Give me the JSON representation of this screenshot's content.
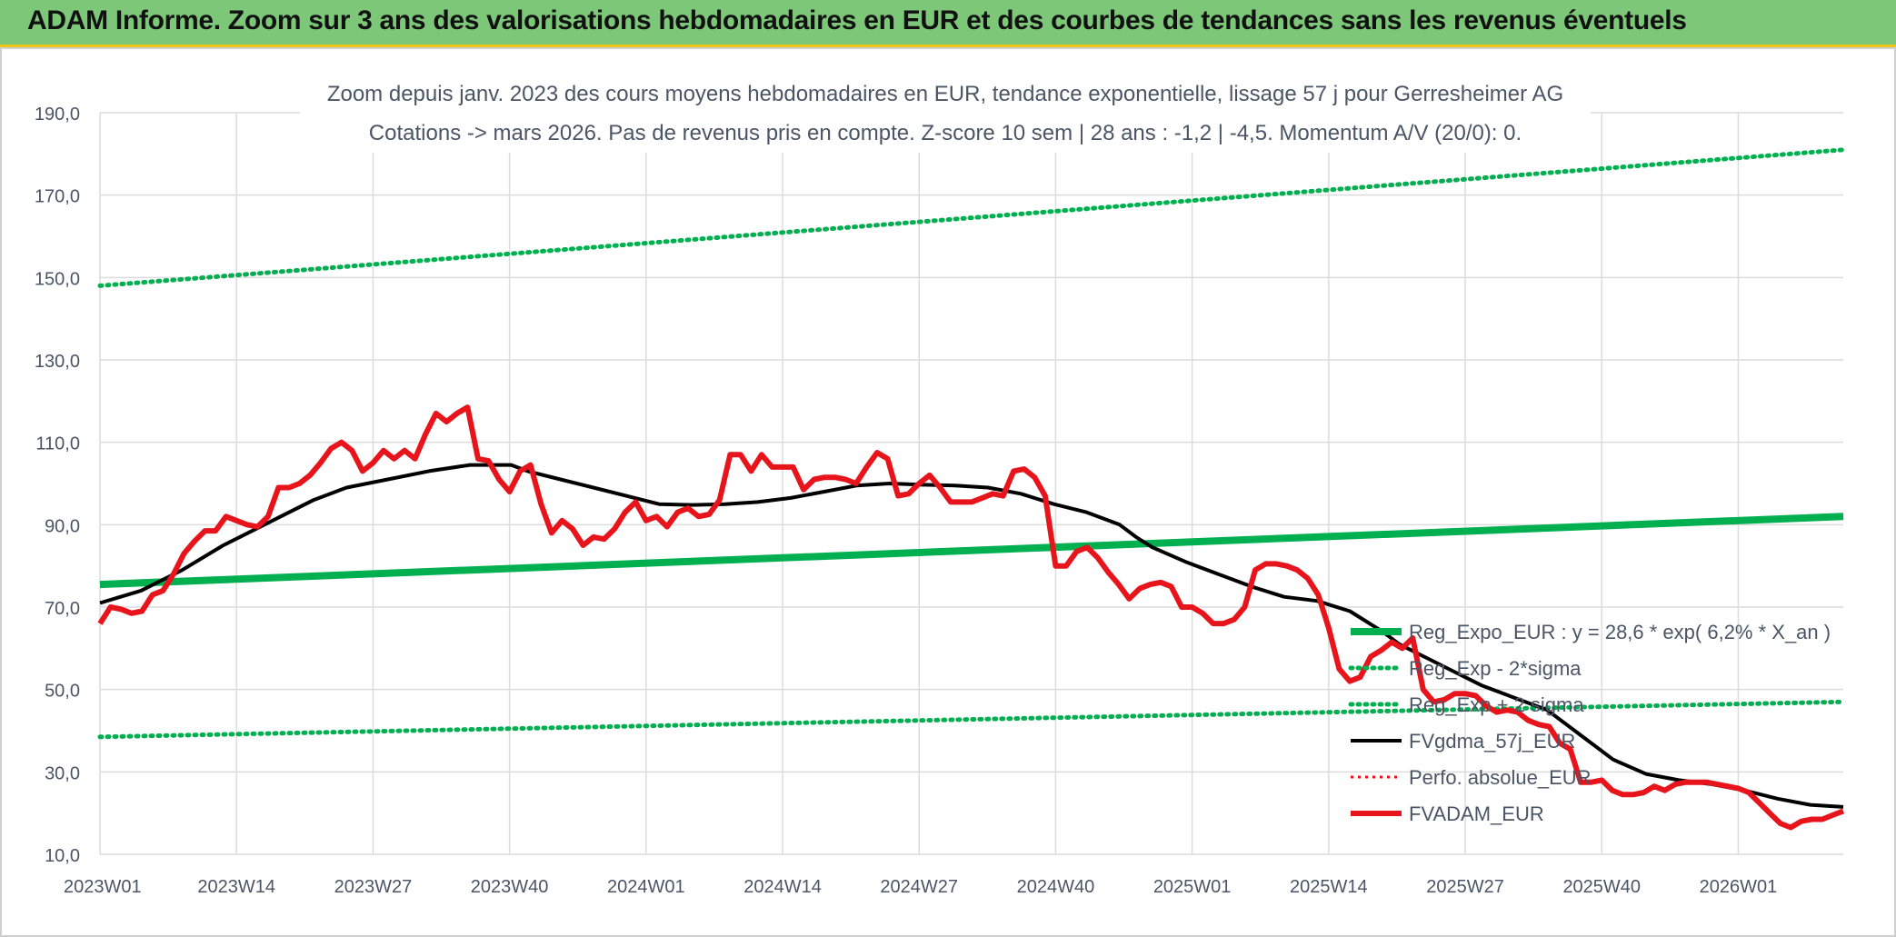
{
  "page": {
    "banner_title": "ADAM Informe. Zoom sur 3 ans des valorisations hebdomadaires en EUR et des courbes de tendances sans les revenus éventuels"
  },
  "colors": {
    "banner_bg": "#7dc878",
    "banner_border": "#f0c419",
    "reg_expo": "#00b050",
    "fvadam": "#e8141b",
    "fvgdma": "#000000",
    "perfo": "#e8141b"
  },
  "chart_data": {
    "type": "line",
    "title": "Zoom depuis janv. 2023 des cours moyens hebdomadaires en EUR, tendance exponentielle, lissage 57 j pour Gerresheimer AG",
    "subtitle": "Cotations -> mars 2026. Pas de revenus pris en compte. Z-score 10 sem | 28 ans : -1,2 | -4,5. Momentum A/V (20/0): 0.",
    "xlabel": "",
    "ylabel": "",
    "ylim": [
      10,
      190
    ],
    "y_ticks": [
      "10,0",
      "30,0",
      "50,0",
      "70,0",
      "90,0",
      "110,0",
      "130,0",
      "150,0",
      "170,0",
      "190,0"
    ],
    "x_ticks": [
      "2023W01",
      "2023W14",
      "2023W27",
      "2023W40",
      "2024W01",
      "2024W14",
      "2024W27",
      "2024W40",
      "2025W01",
      "2025W14",
      "2025W27",
      "2025W40",
      "2026W01"
    ],
    "grid": true,
    "legend_position": "bottom-right",
    "n_weeks": 167,
    "legend": [
      "Reg_Expo_EUR : y = 28,6 * exp( 6,2% *  X_an )",
      "Reg_Exp - 2*sigma",
      "Reg_Exp + 2 sigma",
      "FVgdma_57j_EUR",
      "Perfo. absolue_EUR",
      "FVADAM_EUR"
    ],
    "series": [
      {
        "name": "Reg_Expo_EUR : y = 28,6 * exp( 6,2% *  X_an )",
        "style": "thick",
        "points": [
          [
            0,
            75.5
          ],
          [
            166,
            92.0
          ]
        ]
      },
      {
        "name": "Reg_Exp - 2*sigma",
        "style": "dotted",
        "points": [
          [
            0,
            38.5
          ],
          [
            166,
            47.0
          ]
        ]
      },
      {
        "name": "Reg_Exp + 2 sigma",
        "style": "dotted",
        "points": [
          [
            0,
            148.0
          ],
          [
            166,
            181.0
          ]
        ]
      },
      {
        "name": "FVgdma_57j_EUR",
        "style": "solid",
        "points": [
          [
            0,
            71
          ],
          [
            5,
            74
          ],
          [
            10,
            79
          ],
          [
            15,
            85
          ],
          [
            20,
            90
          ],
          [
            26,
            96
          ],
          [
            30,
            99
          ],
          [
            35,
            101
          ],
          [
            40,
            103
          ],
          [
            45,
            104.5
          ],
          [
            50,
            104.5
          ],
          [
            52,
            103
          ],
          [
            56,
            101
          ],
          [
            60,
            99
          ],
          [
            64,
            97
          ],
          [
            68,
            95
          ],
          [
            72,
            94.8
          ],
          [
            76,
            95
          ],
          [
            80,
            95.5
          ],
          [
            84,
            96.5
          ],
          [
            88,
            98
          ],
          [
            92,
            99.5
          ],
          [
            96,
            100
          ],
          [
            100,
            99.7
          ],
          [
            104,
            99.5
          ],
          [
            108,
            99
          ],
          [
            112,
            97.5
          ],
          [
            116,
            95
          ],
          [
            120,
            93
          ],
          [
            124,
            90
          ],
          [
            126,
            87
          ],
          [
            128,
            84.5
          ],
          [
            132,
            81
          ],
          [
            136,
            78
          ],
          [
            140,
            75
          ],
          [
            144,
            72.5
          ],
          [
            148,
            71.5
          ],
          [
            152,
            69
          ],
          [
            156,
            64
          ],
          [
            158,
            61
          ],
          [
            160,
            59
          ],
          [
            164,
            55
          ],
          [
            168,
            51
          ],
          [
            172,
            48
          ],
          [
            176,
            45
          ],
          [
            180,
            39
          ],
          [
            184,
            33
          ],
          [
            188,
            29.5
          ],
          [
            192,
            28
          ],
          [
            196,
            27
          ],
          [
            200,
            25.5
          ],
          [
            204,
            23.5
          ],
          [
            208,
            22
          ],
          [
            212,
            21.5
          ]
        ]
      },
      {
        "name": "FVADAM_EUR",
        "style": "thick",
        "points": [
          [
            0,
            66
          ],
          [
            1,
            70
          ],
          [
            2,
            69.5
          ],
          [
            3,
            68.5
          ],
          [
            4,
            69
          ],
          [
            5,
            73
          ],
          [
            6,
            74
          ],
          [
            7,
            78
          ],
          [
            8,
            83
          ],
          [
            9,
            86
          ],
          [
            10,
            88.5
          ],
          [
            11,
            88.5
          ],
          [
            12,
            92
          ],
          [
            13,
            91
          ],
          [
            14,
            90
          ],
          [
            15,
            89.5
          ],
          [
            16,
            92
          ],
          [
            17,
            99
          ],
          [
            18,
            99
          ],
          [
            19,
            100
          ],
          [
            20,
            102
          ],
          [
            21,
            105
          ],
          [
            22,
            108.5
          ],
          [
            23,
            110
          ],
          [
            24,
            108
          ],
          [
            25,
            103
          ],
          [
            26,
            105
          ],
          [
            27,
            108
          ],
          [
            28,
            106
          ],
          [
            29,
            108
          ],
          [
            30,
            106
          ],
          [
            31,
            112
          ],
          [
            32,
            117
          ],
          [
            33,
            115
          ],
          [
            34,
            117
          ],
          [
            35,
            118.5
          ],
          [
            36,
            106
          ],
          [
            37,
            105.5
          ],
          [
            38,
            101
          ],
          [
            39,
            98
          ],
          [
            40,
            103
          ],
          [
            41,
            104.5
          ],
          [
            42,
            95
          ],
          [
            43,
            88
          ],
          [
            44,
            91
          ],
          [
            45,
            89
          ],
          [
            46,
            85
          ],
          [
            47,
            87
          ],
          [
            48,
            86.5
          ],
          [
            49,
            89
          ],
          [
            50,
            93
          ],
          [
            51,
            95.5
          ],
          [
            52,
            91
          ],
          [
            53,
            92
          ],
          [
            54,
            89.5
          ],
          [
            55,
            93
          ],
          [
            56,
            94
          ],
          [
            57,
            92
          ],
          [
            58,
            92.5
          ],
          [
            59,
            96
          ],
          [
            60,
            107
          ],
          [
            61,
            107
          ],
          [
            62,
            103
          ],
          [
            63,
            107
          ],
          [
            64,
            104
          ],
          [
            65,
            104
          ],
          [
            66,
            104
          ],
          [
            67,
            98.5
          ],
          [
            68,
            101
          ],
          [
            69,
            101.5
          ],
          [
            70,
            101.5
          ],
          [
            71,
            101
          ],
          [
            72,
            100
          ],
          [
            73,
            104
          ],
          [
            74,
            107.5
          ],
          [
            75,
            106
          ],
          [
            76,
            97
          ],
          [
            77,
            97.5
          ],
          [
            78,
            100
          ],
          [
            79,
            102
          ],
          [
            80,
            99
          ],
          [
            81,
            95.5
          ],
          [
            82,
            95.5
          ],
          [
            83,
            95.5
          ],
          [
            84,
            96.5
          ],
          [
            85,
            97.5
          ],
          [
            86,
            97
          ],
          [
            87,
            103
          ],
          [
            88,
            103.5
          ],
          [
            89,
            101.5
          ],
          [
            90,
            97
          ],
          [
            91,
            80
          ],
          [
            92,
            80
          ],
          [
            93,
            83.5
          ],
          [
            94,
            84.5
          ],
          [
            95,
            82
          ],
          [
            96,
            78.5
          ],
          [
            97,
            75.5
          ],
          [
            98,
            72
          ],
          [
            99,
            74.5
          ],
          [
            100,
            75.5
          ],
          [
            101,
            76
          ],
          [
            102,
            75
          ],
          [
            103,
            70
          ],
          [
            104,
            70
          ],
          [
            105,
            68.5
          ],
          [
            106,
            66
          ],
          [
            107,
            66
          ],
          [
            108,
            67
          ],
          [
            109,
            70
          ],
          [
            110,
            79
          ],
          [
            111,
            80.5
          ],
          [
            112,
            80.5
          ],
          [
            113,
            80
          ],
          [
            114,
            79
          ],
          [
            115,
            77
          ],
          [
            116,
            73
          ],
          [
            117,
            65
          ],
          [
            118,
            55
          ],
          [
            119,
            52
          ],
          [
            120,
            53
          ],
          [
            121,
            58
          ],
          [
            122,
            59.5
          ],
          [
            123,
            61.5
          ],
          [
            124,
            60
          ],
          [
            125,
            62.5
          ],
          [
            126,
            50
          ],
          [
            127,
            47
          ],
          [
            128,
            47.5
          ],
          [
            129,
            49
          ],
          [
            130,
            49
          ],
          [
            131,
            48.5
          ],
          [
            132,
            46
          ],
          [
            133,
            44.5
          ],
          [
            134,
            45
          ],
          [
            135,
            44.5
          ],
          [
            136,
            42.5
          ],
          [
            137,
            41.5
          ],
          [
            138,
            41
          ],
          [
            139,
            37
          ],
          [
            140,
            35.5
          ],
          [
            141,
            27.5
          ],
          [
            142,
            27.5
          ],
          [
            143,
            28
          ],
          [
            144,
            25.5
          ],
          [
            145,
            24.5
          ],
          [
            146,
            24.5
          ],
          [
            147,
            25
          ],
          [
            148,
            26.5
          ],
          [
            149,
            25.5
          ],
          [
            150,
            27
          ],
          [
            151,
            27.5
          ],
          [
            152,
            27.5
          ],
          [
            153,
            27.5
          ],
          [
            154,
            27
          ],
          [
            155,
            26.5
          ],
          [
            156,
            26
          ],
          [
            157,
            25
          ],
          [
            158,
            22.5
          ],
          [
            159,
            20
          ],
          [
            160,
            17.5
          ],
          [
            161,
            16.5
          ],
          [
            162,
            18
          ],
          [
            163,
            18.5
          ],
          [
            164,
            18.5
          ],
          [
            165,
            19.5
          ],
          [
            166,
            20.5
          ]
        ]
      }
    ]
  }
}
